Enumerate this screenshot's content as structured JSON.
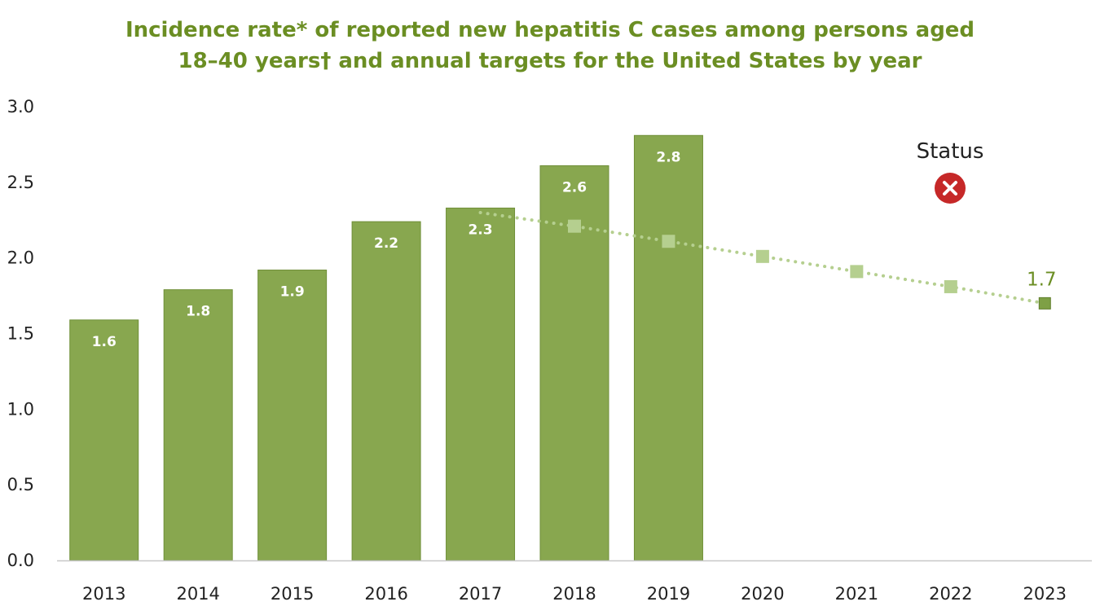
{
  "title_line1": "Incidence rate* of reported new hepatitis C cases among persons aged",
  "title_line2": "18–40 years† and annual targets for the United States by year",
  "chart_data": {
    "type": "bar",
    "categories": [
      "2013",
      "2014",
      "2015",
      "2016",
      "2017",
      "2018",
      "2019",
      "2020",
      "2021",
      "2022",
      "2023"
    ],
    "ylim": [
      0,
      3.0
    ],
    "yticks": [
      "0.0",
      "0.5",
      "1.0",
      "1.5",
      "2.0",
      "2.5",
      "3.0"
    ],
    "grid": false,
    "bars": {
      "color": "#88a74f",
      "values": [
        1.59,
        1.79,
        1.92,
        2.24,
        2.33,
        2.61,
        2.81,
        null,
        null,
        null,
        null
      ],
      "labels": [
        "1.6",
        "1.8",
        "1.9",
        "2.2",
        "2.3",
        "2.6",
        "2.8",
        "",
        "",
        "",
        ""
      ]
    },
    "targets": {
      "color_light": "#b5cf8f",
      "color_dark": "#6b8e23",
      "line_start": {
        "x": "2017",
        "y": 2.3
      },
      "points": [
        {
          "x": "2018",
          "y": 2.21
        },
        {
          "x": "2019",
          "y": 2.11
        },
        {
          "x": "2020",
          "y": 2.01
        },
        {
          "x": "2021",
          "y": 1.91
        },
        {
          "x": "2022",
          "y": 1.81
        },
        {
          "x": "2023",
          "y": 1.7
        }
      ],
      "end_label": "1.7"
    },
    "status": {
      "label": "Status",
      "icon": "x-circle-icon",
      "color": "#c62828"
    }
  }
}
